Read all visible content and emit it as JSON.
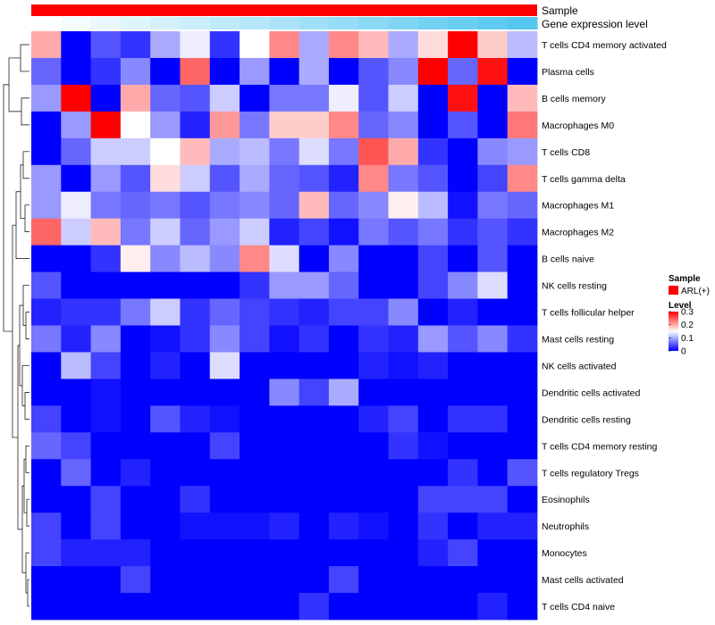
{
  "chart_data": {
    "type": "heatmap",
    "annotation_rows": [
      {
        "label": "Sample",
        "color": "#ff0000"
      },
      {
        "label": "Gene expression level",
        "gradient_from": "#ffffff",
        "gradient_to": "#55c7f0"
      }
    ],
    "rows": [
      "T cells CD4 memory activated",
      "Plasma cells",
      "B cells memory",
      "Macrophages M0",
      "T cells CD8",
      "T cells gamma delta",
      "Macrophages M1",
      "Macrophages M2",
      "B cells naive",
      "NK cells resting",
      "T cells follicular helper",
      "Mast cells resting",
      "NK cells activated",
      "Dendritic cells activated",
      "Dendritic cells resting",
      "T cells CD4 memory resting",
      "T cells regulatory  Tregs",
      "Eosinophils",
      "Neutrophils",
      "Monocytes",
      "Mast cells activated",
      "T cells CD4 naive"
    ],
    "values": [
      [
        0.2,
        0.0,
        0.05,
        0.03,
        0.1,
        0.14,
        0.03,
        0.15,
        0.22,
        0.1,
        0.22,
        0.19,
        0.1,
        0.17,
        0.3,
        0.18,
        0.11
      ],
      [
        0.06,
        0.0,
        0.03,
        0.08,
        0.0,
        0.24,
        0.0,
        0.09,
        0.0,
        0.1,
        0.0,
        0.05,
        0.08,
        0.3,
        0.06,
        0.29,
        0.0
      ],
      [
        0.09,
        0.3,
        0.0,
        0.2,
        0.06,
        0.05,
        0.12,
        0.0,
        0.07,
        0.07,
        0.14,
        0.05,
        0.12,
        0.0,
        0.29,
        0.0,
        0.19
      ],
      [
        0.0,
        0.09,
        0.3,
        0.15,
        0.09,
        0.02,
        0.21,
        0.07,
        0.18,
        0.18,
        0.22,
        0.06,
        0.08,
        0.0,
        0.05,
        0.0,
        0.23
      ],
      [
        0.0,
        0.06,
        0.12,
        0.12,
        0.15,
        0.19,
        0.1,
        0.11,
        0.07,
        0.13,
        0.07,
        0.25,
        0.2,
        0.03,
        0.0,
        0.08,
        0.09
      ],
      [
        0.09,
        0.0,
        0.09,
        0.05,
        0.17,
        0.12,
        0.05,
        0.1,
        0.06,
        0.05,
        0.02,
        0.22,
        0.07,
        0.05,
        0.0,
        0.04,
        0.22
      ],
      [
        0.09,
        0.14,
        0.07,
        0.06,
        0.07,
        0.05,
        0.07,
        0.08,
        0.06,
        0.19,
        0.06,
        0.08,
        0.16,
        0.11,
        0.01,
        0.07,
        0.06
      ],
      [
        0.24,
        0.12,
        0.19,
        0.07,
        0.12,
        0.06,
        0.09,
        0.12,
        0.02,
        0.04,
        0.01,
        0.07,
        0.05,
        0.07,
        0.03,
        0.05,
        0.03
      ],
      [
        0.0,
        0.0,
        0.03,
        0.16,
        0.08,
        0.11,
        0.08,
        0.22,
        0.13,
        0.0,
        0.08,
        0.0,
        0.0,
        0.04,
        0.0,
        0.05,
        0.0
      ],
      [
        0.05,
        0.0,
        0.0,
        0.0,
        0.0,
        0.0,
        0.0,
        0.03,
        0.09,
        0.09,
        0.06,
        0.0,
        0.0,
        0.04,
        0.08,
        0.13,
        0.0
      ],
      [
        0.02,
        0.03,
        0.03,
        0.07,
        0.12,
        0.03,
        0.06,
        0.04,
        0.03,
        0.02,
        0.04,
        0.04,
        0.08,
        0.0,
        0.02,
        0.0,
        0.0
      ],
      [
        0.07,
        0.02,
        0.08,
        0.0,
        0.01,
        0.03,
        0.08,
        0.04,
        0.01,
        0.03,
        0.0,
        0.03,
        0.02,
        0.09,
        0.05,
        0.08,
        0.03
      ],
      [
        0.0,
        0.11,
        0.04,
        0.0,
        0.02,
        0.0,
        0.13,
        0.0,
        0.0,
        0.0,
        0.0,
        0.02,
        0.01,
        0.02,
        0.0,
        0.0,
        0.0
      ],
      [
        0.0,
        0.0,
        0.01,
        0.0,
        0.0,
        0.0,
        0.0,
        0.0,
        0.08,
        0.04,
        0.1,
        0.0,
        0.0,
        0.0,
        0.0,
        0.0,
        0.0
      ],
      [
        0.04,
        0.0,
        0.01,
        0.0,
        0.05,
        0.02,
        0.01,
        0.0,
        0.0,
        0.0,
        0.0,
        0.02,
        0.04,
        0.0,
        0.03,
        0.03,
        0.0
      ],
      [
        0.06,
        0.04,
        0.0,
        0.0,
        0.0,
        0.0,
        0.04,
        0.0,
        0.0,
        0.0,
        0.0,
        0.0,
        0.03,
        0.01,
        0.0,
        0.0,
        0.0
      ],
      [
        0.0,
        0.06,
        0.0,
        0.02,
        0.0,
        0.0,
        0.0,
        0.0,
        0.0,
        0.0,
        0.0,
        0.0,
        0.0,
        0.0,
        0.03,
        0.0,
        0.05
      ],
      [
        0.0,
        0.0,
        0.04,
        0.0,
        0.0,
        0.03,
        0.0,
        0.0,
        0.0,
        0.0,
        0.0,
        0.0,
        0.0,
        0.04,
        0.04,
        0.04,
        0.0
      ],
      [
        0.04,
        0.0,
        0.04,
        0.0,
        0.0,
        0.01,
        0.01,
        0.01,
        0.02,
        0.0,
        0.02,
        0.01,
        0.0,
        0.03,
        0.0,
        0.02,
        0.02
      ],
      [
        0.04,
        0.02,
        0.02,
        0.02,
        0.0,
        0.0,
        0.0,
        0.0,
        0.0,
        0.0,
        0.0,
        0.0,
        0.0,
        0.02,
        0.04,
        0.0,
        0.0
      ],
      [
        0.0,
        0.0,
        0.0,
        0.04,
        0.0,
        0.0,
        0.0,
        0.0,
        0.0,
        0.0,
        0.04,
        0.0,
        0.0,
        0.0,
        0.0,
        0.0,
        0.0
      ],
      [
        0.0,
        0.0,
        0.0,
        0.0,
        0.0,
        0.0,
        0.0,
        0.0,
        0.0,
        0.03,
        0.0,
        0.0,
        0.0,
        0.0,
        0.0,
        0.02,
        0.0
      ]
    ],
    "n_columns": 17,
    "color_scale": {
      "low": "#0000ff",
      "mid": "#ffffff",
      "high": "#ff0000",
      "min": 0,
      "mid_value": 0.15,
      "max": 0.3
    },
    "legend": {
      "position": "right",
      "sample_title": "Sample",
      "sample_label": "ARL(+)",
      "sample_color": "#ff0000",
      "level_title": "Level",
      "level_ticks": [
        "0.3",
        "0.2",
        "0.1",
        "0"
      ],
      "level_tick_values": [
        0.3,
        0.2,
        0.1,
        0
      ]
    },
    "row_dendrogram": "left",
    "grid": false
  }
}
